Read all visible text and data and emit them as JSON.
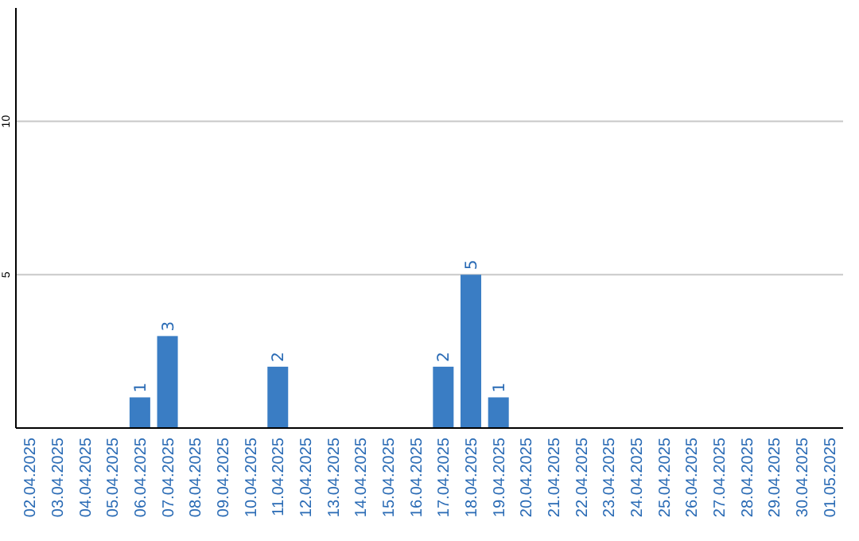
{
  "chart_data": {
    "type": "bar",
    "categories": [
      "02.04.2025",
      "03.04.2025",
      "04.04.2025",
      "05.04.2025",
      "06.04.2025",
      "07.04.2025",
      "08.04.2025",
      "09.04.2025",
      "10.04.2025",
      "11.04.2025",
      "12.04.2025",
      "13.04.2025",
      "14.04.2025",
      "15.04.2025",
      "16.04.2025",
      "17.04.2025",
      "18.04.2025",
      "19.04.2025",
      "20.04.2025",
      "21.04.2025",
      "22.04.2025",
      "23.04.2025",
      "24.04.2025",
      "25.04.2025",
      "26.04.2025",
      "27.04.2025",
      "28.04.2025",
      "29.04.2025",
      "30.04.2025",
      "01.05.2025"
    ],
    "values": [
      null,
      null,
      null,
      null,
      1,
      3,
      null,
      null,
      null,
      2,
      null,
      null,
      null,
      null,
      null,
      2,
      5,
      1,
      null,
      null,
      null,
      null,
      null,
      null,
      null,
      null,
      null,
      null,
      null,
      null
    ],
    "color": "#3a7dc4",
    "ylim": [
      0,
      13.7
    ],
    "yticks": [
      5,
      10
    ],
    "grid": "y",
    "data_labels": true
  }
}
